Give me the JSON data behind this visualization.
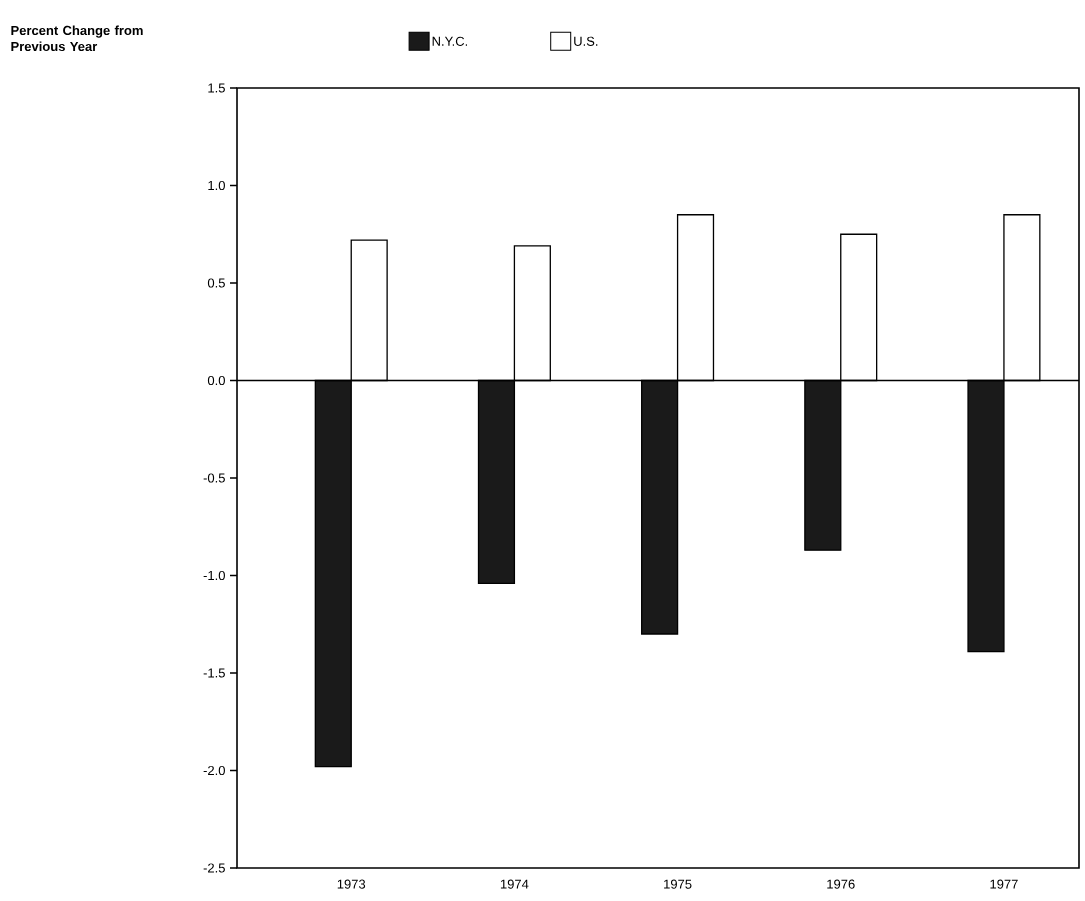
{
  "chart_data": {
    "type": "bar",
    "annotations": [
      "Percent Change from Previous Year"
    ],
    "categories": [
      "1973",
      "1974",
      "1975",
      "1976",
      "1977"
    ],
    "series": [
      {
        "name": "N.Y.C.",
        "color": "#1a1a1a",
        "values": [
          -1.98,
          -1.04,
          -1.3,
          -0.87,
          -1.39
        ]
      },
      {
        "name": "U.S.",
        "color": "#ffffff",
        "values": [
          0.72,
          0.69,
          0.85,
          0.75,
          0.85
        ]
      }
    ],
    "ylim": [
      -2.5,
      1.5
    ],
    "yticks": [
      1.5,
      {
        "value": 1.0,
        "label": "1.0"
      },
      0.5,
      {
        "value": 0,
        "label": "0.0"
      },
      -0.5,
      {
        "value": -1.0,
        "label": "-1.0"
      },
      -1.5,
      {
        "value": -2.0,
        "label": "-2.0"
      },
      -2.5
    ],
    "ref_lines": [
      {
        "axis": "y",
        "value": 0
      }
    ],
    "legend": "top"
  }
}
